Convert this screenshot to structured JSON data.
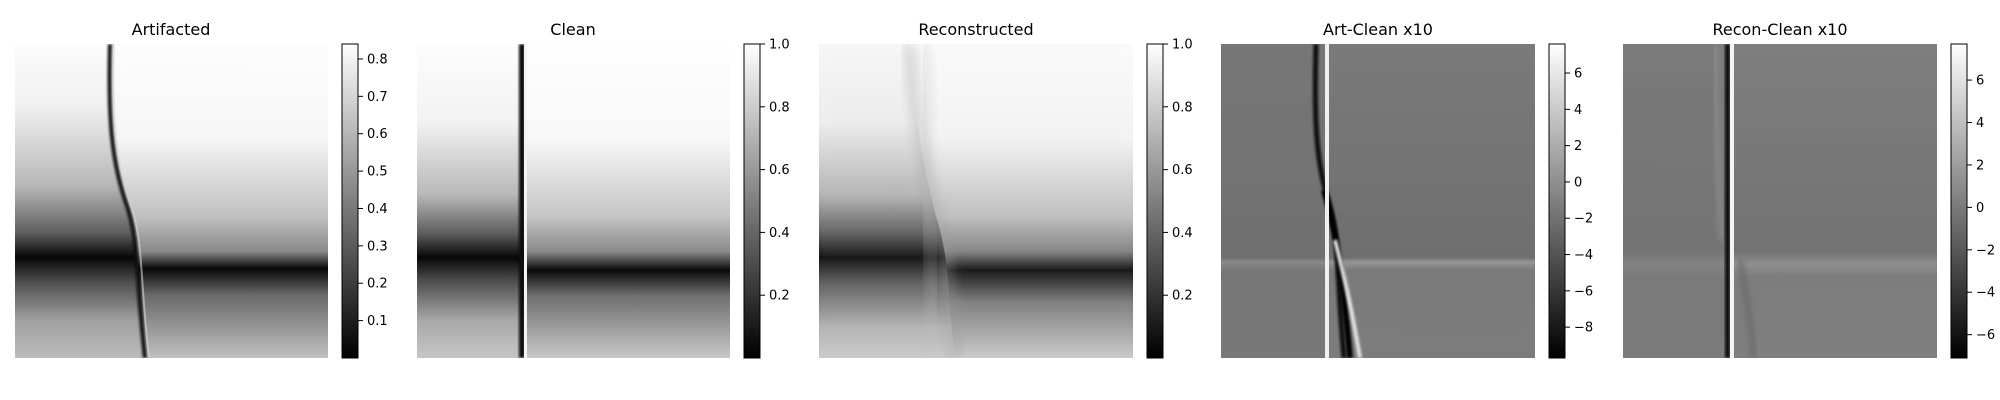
{
  "chart_data": [
    {
      "type": "heatmap",
      "title": "Artifacted",
      "colormap": "gray",
      "colorbar": {
        "range": [
          0.0,
          0.84
        ],
        "ticks": [
          0.1,
          0.2,
          0.3,
          0.4,
          0.5,
          0.6,
          0.7,
          0.8
        ],
        "tick_labels": [
          "0.1",
          "0.2",
          "0.3",
          "0.4",
          "0.5",
          "0.6",
          "0.7",
          "0.8"
        ]
      },
      "axes_visible": false
    },
    {
      "type": "heatmap",
      "title": "Clean",
      "colormap": "gray",
      "colorbar": {
        "range": [
          0.0,
          1.0
        ],
        "ticks": [
          0.2,
          0.4,
          0.6,
          0.8,
          1.0
        ],
        "tick_labels": [
          "0.2",
          "0.4",
          "0.6",
          "0.8",
          "1.0"
        ]
      },
      "axes_visible": false
    },
    {
      "type": "heatmap",
      "title": "Reconstructed",
      "colormap": "gray",
      "colorbar": {
        "range": [
          0.0,
          1.0
        ],
        "ticks": [
          0.2,
          0.4,
          0.6,
          0.8,
          1.0
        ],
        "tick_labels": [
          "0.2",
          "0.4",
          "0.6",
          "0.8",
          "1.0"
        ]
      },
      "axes_visible": false
    },
    {
      "type": "heatmap",
      "title": "Art-Clean x10",
      "colormap": "gray",
      "colorbar": {
        "range": [
          -9.7,
          7.6
        ],
        "ticks": [
          -8,
          -6,
          -4,
          -2,
          0,
          2,
          4,
          6
        ],
        "tick_labels": [
          "−8",
          "−6",
          "−4",
          "−2",
          "0",
          "2",
          "4",
          "6"
        ]
      },
      "axes_visible": false
    },
    {
      "type": "heatmap",
      "title": "Recon-Clean x10",
      "colormap": "gray",
      "colorbar": {
        "range": [
          -7.1,
          7.7
        ],
        "ticks": [
          -6,
          -4,
          -2,
          0,
          2,
          4,
          6
        ],
        "tick_labels": [
          "−6",
          "−4",
          "−2",
          "0",
          "2",
          "4",
          "6"
        ]
      },
      "axes_visible": false
    }
  ]
}
